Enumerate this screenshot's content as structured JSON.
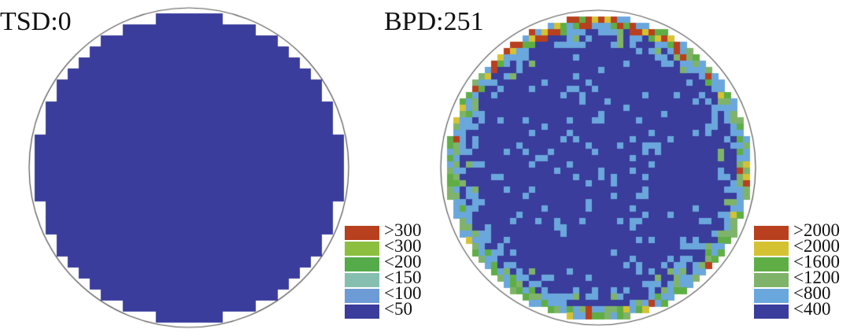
{
  "panels": [
    {
      "title": "TSD:0",
      "legend": [
        {
          "label": ">300",
          "color": "#b8401f"
        },
        {
          "label": "<300",
          "color": "#8cbf3f"
        },
        {
          "label": "<200",
          "color": "#55aa4a"
        },
        {
          "label": "<150",
          "color": "#86bfb0"
        },
        {
          "label": "<100",
          "color": "#6d9bd6"
        },
        {
          "label": "<50",
          "color": "#3a3d9c"
        }
      ]
    },
    {
      "title": "BPD:251",
      "legend": [
        {
          "label": ">2000",
          "color": "#b8401f"
        },
        {
          "label": "<2000",
          "color": "#d4c233"
        },
        {
          "label": "<1600",
          "color": "#5fae45"
        },
        {
          "label": "<1200",
          "color": "#7fb36a"
        },
        {
          "label": "<800",
          "color": "#6aa7dc"
        },
        {
          "label": "<400",
          "color": "#3a3d9c"
        }
      ]
    }
  ]
}
